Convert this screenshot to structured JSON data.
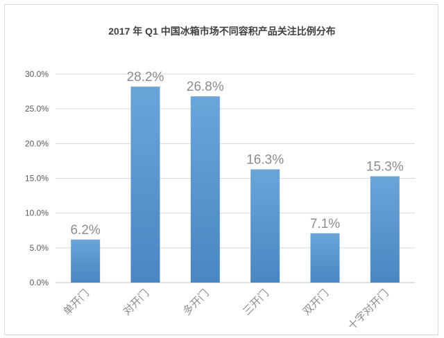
{
  "chart_data": {
    "type": "bar",
    "title": "2017 年 Q1 中国冰箱市场不同容积产品关注比例分布",
    "xlabel": "",
    "ylabel": "",
    "categories": [
      "单开门",
      "对开门",
      "多开门",
      "三开门",
      "双开门",
      "十字对开门"
    ],
    "values": [
      6.2,
      28.2,
      26.8,
      16.3,
      7.1,
      15.3
    ],
    "data_labels": [
      "6.2%",
      "28.2%",
      "26.8%",
      "16.3%",
      "7.1%",
      "15.3%"
    ],
    "ylim": [
      0,
      30
    ],
    "yticks": [
      0,
      5,
      10,
      15,
      20,
      25,
      30
    ],
    "ytick_labels": [
      "0.0%",
      "5.0%",
      "10.0%",
      "15.0%",
      "20.0%",
      "25.0%",
      "30.0%"
    ],
    "grid": true,
    "bar_color": "#5b9bd5",
    "bar_color_dark": "#4a84bd"
  }
}
